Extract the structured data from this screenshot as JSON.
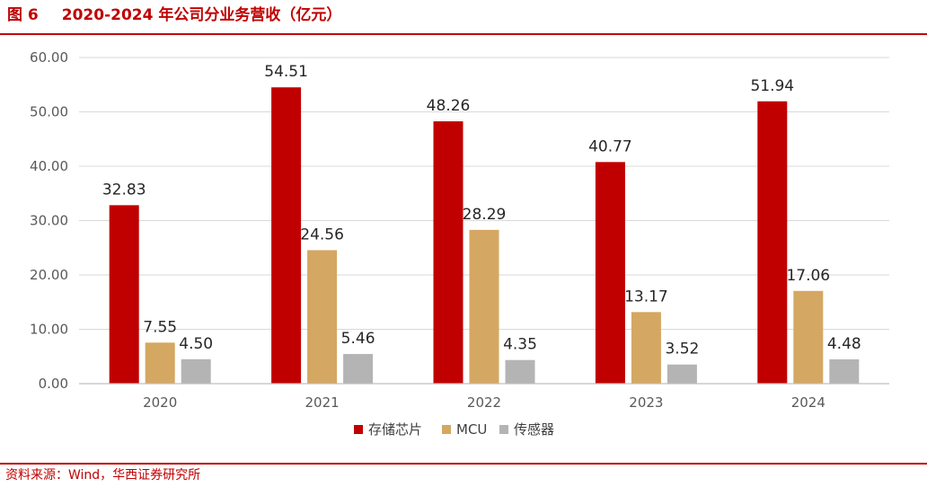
{
  "figure": {
    "number": "图 6",
    "title": "2020-2024 年公司分业务营收（亿元）",
    "source": "资料来源：Wind，华西证券研究所"
  },
  "chart_data": {
    "type": "bar",
    "categories": [
      "2020",
      "2021",
      "2022",
      "2023",
      "2024"
    ],
    "series": [
      {
        "name": "存储芯片",
        "color": "#c00000",
        "values": [
          32.83,
          54.51,
          48.26,
          40.77,
          51.94
        ]
      },
      {
        "name": "MCU",
        "color": "#d4a762",
        "values": [
          7.55,
          24.56,
          28.29,
          13.17,
          17.06
        ]
      },
      {
        "name": "传感器",
        "color": "#b4b4b4",
        "values": [
          4.5,
          5.46,
          4.35,
          3.52,
          4.48
        ]
      }
    ],
    "ylim": [
      0,
      60
    ],
    "yticks": [
      "0.00",
      "10.00",
      "20.00",
      "30.00",
      "40.00",
      "50.00",
      "60.00"
    ],
    "grid": true,
    "legend_position": "bottom-center",
    "data_labels": true
  }
}
